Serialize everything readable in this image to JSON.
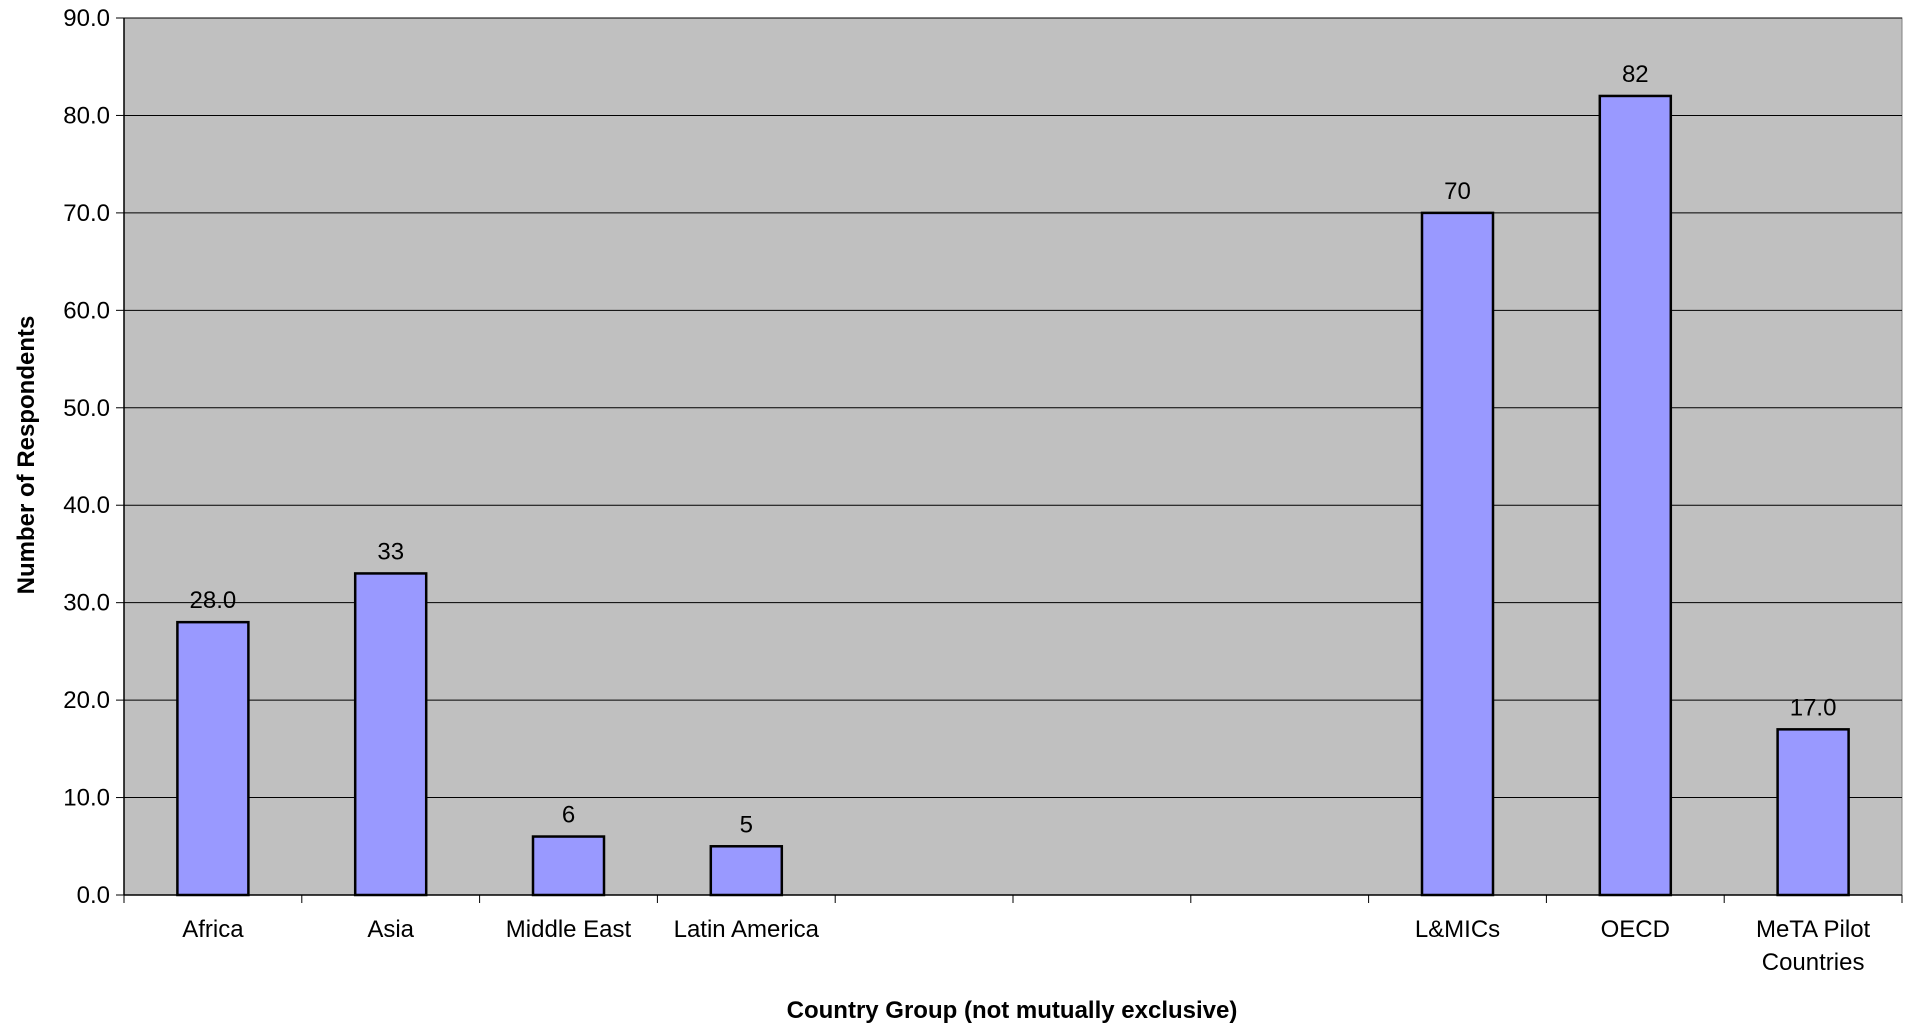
{
  "colors": {
    "plot_background": "#c0c0c0",
    "bar_fill": "#9999ff",
    "bar_stroke": "#000000",
    "gridline": "#000000"
  },
  "chart_data": {
    "type": "bar",
    "xlabel": "Country Group (not mutually exclusive)",
    "ylabel": "Number of Respondents",
    "ylim": [
      0,
      90
    ],
    "ytick_step": 10,
    "ytick_labels": [
      "0.0",
      "10.0",
      "20.0",
      "30.0",
      "40.0",
      "50.0",
      "60.0",
      "70.0",
      "80.0",
      "90.0"
    ],
    "grid": true,
    "categories": [
      [
        "Africa"
      ],
      [
        "Asia"
      ],
      [
        "Middle East"
      ],
      [
        "Latin America"
      ],
      [
        ""
      ],
      [
        ""
      ],
      [
        ""
      ],
      [
        "L&MICs"
      ],
      [
        "OECD"
      ],
      [
        "MeTA Pilot",
        "Countries"
      ]
    ],
    "values": [
      28,
      33,
      6,
      5,
      null,
      null,
      null,
      70,
      82,
      17
    ],
    "data_labels": [
      "28.0",
      "33",
      "6",
      "5",
      "",
      "",
      "",
      "70",
      "82",
      "17.0"
    ]
  }
}
